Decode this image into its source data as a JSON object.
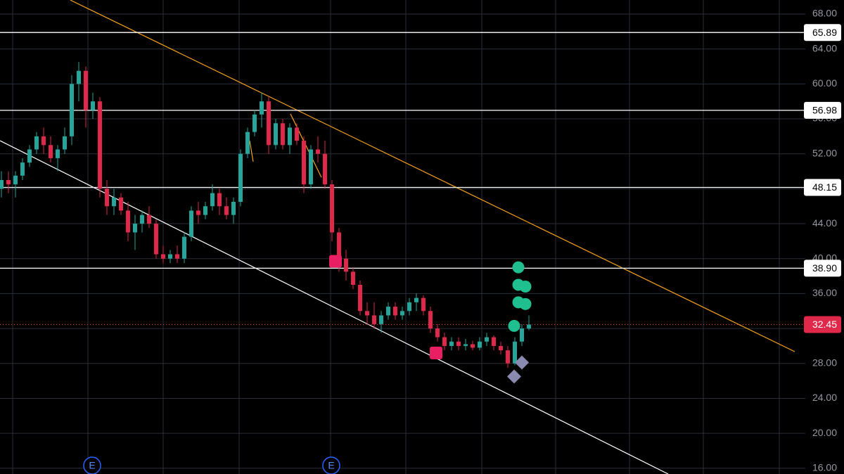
{
  "chart_data": {
    "type": "candlestick",
    "up_color": "#26a69a",
    "down_color": "#e0294a",
    "xlim": [
      -0.2,
      114.3
    ],
    "ylim": [
      15.34,
      69.61
    ],
    "yticks": [
      {
        "value": 16,
        "label": "16.00"
      },
      {
        "value": 20,
        "label": "20.00"
      },
      {
        "value": 24,
        "label": "24.00"
      },
      {
        "value": 28,
        "label": "28.00"
      },
      {
        "value": 32,
        "label": "32.00"
      },
      {
        "value": 36,
        "label": "36.00"
      },
      {
        "value": 40,
        "label": "40.00"
      },
      {
        "value": 44,
        "label": "44.00"
      },
      {
        "value": 48,
        "label": "48.00"
      },
      {
        "value": 52,
        "label": "52.00"
      },
      {
        "value": 56,
        "label": "56.00"
      },
      {
        "value": 60,
        "label": "60.00"
      },
      {
        "value": 64,
        "label": "64.00"
      },
      {
        "value": 68,
        "label": "68.00"
      }
    ],
    "grid": true,
    "candles": [
      [
        48,
        50,
        47,
        49
      ],
      [
        49,
        50,
        47.5,
        48.5
      ],
      [
        48.5,
        50,
        47,
        49.5
      ],
      [
        49.5,
        51.5,
        49,
        51
      ],
      [
        51,
        53,
        50.5,
        52.5
      ],
      [
        52.5,
        54.5,
        52,
        54
      ],
      [
        54,
        55,
        52,
        53
      ],
      [
        53,
        54,
        51,
        51.5
      ],
      [
        51.5,
        53,
        50,
        52.5
      ],
      [
        52.5,
        55,
        52,
        54
      ],
      [
        54,
        61,
        53,
        60
      ],
      [
        60,
        62.5,
        58,
        61.5
      ],
      [
        61.5,
        62,
        55,
        57
      ],
      [
        57,
        59,
        56,
        58
      ],
      [
        58,
        58.5,
        47,
        48
      ],
      [
        48,
        49,
        45,
        46
      ],
      [
        46,
        48,
        45,
        47
      ],
      [
        47,
        47.5,
        45,
        45.5
      ],
      [
        45.5,
        46.5,
        42,
        43
      ],
      [
        43,
        45,
        41,
        44
      ],
      [
        44,
        45.5,
        43,
        45
      ],
      [
        45,
        46,
        43.5,
        44
      ],
      [
        44,
        44.5,
        40,
        40.5
      ],
      [
        40.5,
        41.5,
        39.5,
        40
      ],
      [
        40,
        41,
        39.5,
        40.5
      ],
      [
        40.5,
        41.5,
        39.5,
        40
      ],
      [
        40,
        43,
        39.5,
        42.5
      ],
      [
        42.5,
        46,
        42,
        45.5
      ],
      [
        45.5,
        46.5,
        44,
        45
      ],
      [
        45,
        46.5,
        44.5,
        46
      ],
      [
        46,
        48.5,
        45.5,
        47.5
      ],
      [
        47.5,
        48,
        45,
        46
      ],
      [
        46,
        47,
        44.5,
        45
      ],
      [
        45,
        47,
        44,
        46.5
      ],
      [
        46.5,
        52.5,
        46,
        52
      ],
      [
        52,
        55,
        51.5,
        54.5
      ],
      [
        54.5,
        57,
        54,
        56.5
      ],
      [
        56.5,
        59,
        55,
        58
      ],
      [
        58,
        58.5,
        52,
        53
      ],
      [
        53,
        56,
        52.5,
        55.5
      ],
      [
        55.5,
        56,
        52.5,
        53
      ],
      [
        53,
        55.5,
        52,
        55
      ],
      [
        55,
        55.5,
        53,
        53.5
      ],
      [
        53.5,
        54,
        47.5,
        48.5
      ],
      [
        48.5,
        53,
        48,
        52.5
      ],
      [
        52.5,
        54,
        51,
        52
      ],
      [
        52,
        53.5,
        48,
        48.5
      ],
      [
        48.5,
        49,
        42,
        43
      ],
      [
        43,
        43.5,
        38.5,
        40
      ],
      [
        40,
        41,
        37.5,
        38.5
      ],
      [
        38.5,
        39,
        36.5,
        37
      ],
      [
        37,
        37.5,
        33.5,
        34
      ],
      [
        34,
        35,
        32.5,
        33.5
      ],
      [
        33.5,
        35,
        32,
        32.5
      ],
      [
        32.5,
        34,
        31.5,
        33.5
      ],
      [
        33.5,
        35,
        33,
        34.5
      ],
      [
        34.5,
        35,
        33,
        33.5
      ],
      [
        33.5,
        34.5,
        33,
        34
      ],
      [
        34,
        35.5,
        33.5,
        35
      ],
      [
        35,
        36,
        34,
        35.5
      ],
      [
        35.5,
        35.8,
        33.5,
        34
      ],
      [
        34,
        34.5,
        31.5,
        32
      ],
      [
        32,
        32.5,
        30.5,
        31
      ],
      [
        31,
        31.5,
        29.5,
        30
      ],
      [
        30,
        31,
        29.5,
        30.5
      ],
      [
        30.5,
        31,
        29.5,
        30
      ],
      [
        30,
        30.8,
        29.5,
        30.2
      ],
      [
        30.2,
        30.6,
        29.5,
        29.8
      ],
      [
        29.8,
        31,
        29.5,
        30.5
      ],
      [
        30.5,
        31.5,
        30,
        31
      ],
      [
        31,
        31.2,
        29.5,
        30
      ],
      [
        30,
        30.5,
        29,
        29.5
      ],
      [
        29.5,
        30,
        27.5,
        28
      ],
      [
        28,
        31,
        27.8,
        30.5
      ],
      [
        30.5,
        32.5,
        30,
        32
      ],
      [
        32,
        33.5,
        31.8,
        32.45
      ]
    ],
    "levels": [
      65.89,
      56.98,
      48.15,
      {
        "value": 38.9,
        "label": "38.90"
      }
    ],
    "current_price": 32.45,
    "trendlines": [
      {
        "color": "#f7a21b",
        "points": [
          [
            9.8,
            69.6
          ],
          [
            112.8,
            29.35
          ]
        ]
      },
      {
        "color": "#ffffff",
        "points": [
          [
            -0.2,
            53.5
          ],
          [
            94.8,
            15.34
          ]
        ]
      },
      {
        "color": "#f7a21b",
        "points": [
          [
            35.3,
            53.5
          ],
          [
            35.8,
            51.1
          ]
        ]
      },
      {
        "color": "#f7a21b",
        "points": [
          [
            41.1,
            56.57
          ],
          [
            45.5,
            49.3
          ]
        ]
      }
    ],
    "markers": [
      {
        "shape": "square",
        "color": "#e91e63",
        "x": 47.5,
        "y": 39.7
      },
      {
        "shape": "square",
        "color": "#e91e63",
        "x": 61.8,
        "y": 29.2
      },
      {
        "shape": "circle",
        "color": "#1fbf8f",
        "x": 73.5,
        "y": 39.0
      },
      {
        "shape": "circle",
        "color": "#1fbf8f",
        "x": 73.5,
        "y": 37.0
      },
      {
        "shape": "circle",
        "color": "#1fbf8f",
        "x": 74.5,
        "y": 36.8
      },
      {
        "shape": "circle",
        "color": "#1fbf8f",
        "x": 73.5,
        "y": 35.0
      },
      {
        "shape": "circle",
        "color": "#1fbf8f",
        "x": 74.5,
        "y": 34.8
      },
      {
        "shape": "circle",
        "color": "#1fbf8f",
        "x": 72.9,
        "y": 32.3
      },
      {
        "shape": "diamond",
        "color": "#8a8ab0",
        "x": 74.0,
        "y": 28.1
      },
      {
        "shape": "diamond",
        "color": "#8a8ab0",
        "x": 72.9,
        "y": 26.5
      }
    ],
    "events": [
      {
        "label": "E",
        "x": 12.9
      },
      {
        "label": "E",
        "x": 46.9
      }
    ]
  }
}
